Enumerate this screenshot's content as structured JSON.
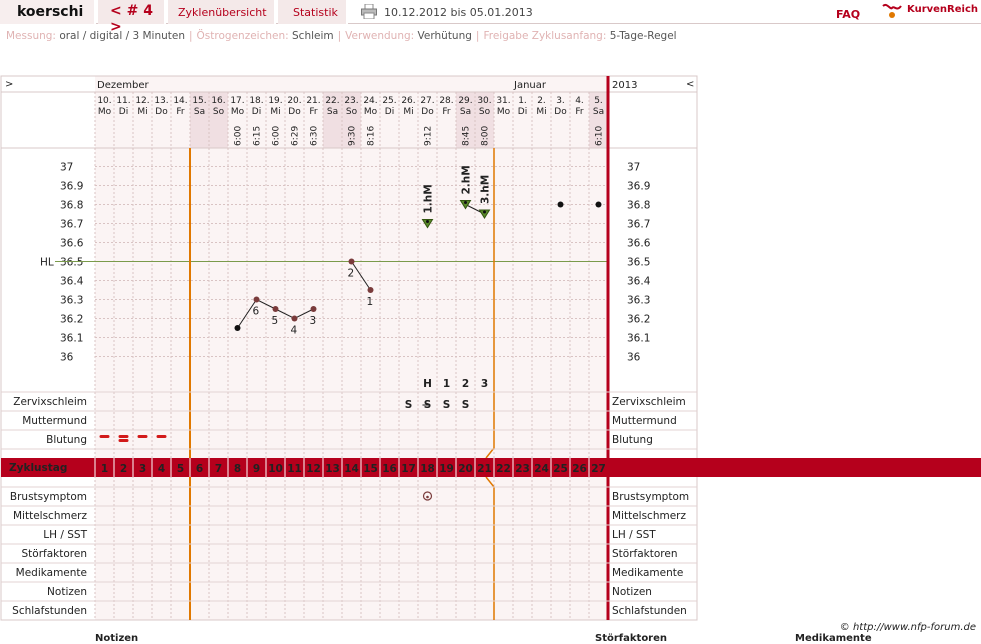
{
  "header": {
    "user": "koerschi",
    "cycle_nav": "< # 4 >",
    "cycle_overview": "Zyklenübersicht",
    "statistics": "Statistik",
    "date_range": "10.12.2012 bis 05.01.2013",
    "faq": "FAQ",
    "brand": "KurvenReich"
  },
  "settings": [
    {
      "label": "Messung:",
      "value": "oral / digital / 3 Minuten"
    },
    {
      "label": "Östrogenzeichen:",
      "value": "Schleim"
    },
    {
      "label": "Verwendung:",
      "value": "Verhütung"
    },
    {
      "label": "Freigabe Zyklusanfang:",
      "value": "5-Tage-Regel"
    }
  ],
  "chart": {
    "nav_prev": ">",
    "nav_next": "<",
    "month_1": "Dezember",
    "month_2": "Januar",
    "year": "2013",
    "hl_label": "HL",
    "days": [
      {
        "d": "10.",
        "w": "Mo",
        "we": false,
        "t": ""
      },
      {
        "d": "11.",
        "w": "Di",
        "we": false,
        "t": ""
      },
      {
        "d": "12.",
        "w": "Mi",
        "we": false,
        "t": ""
      },
      {
        "d": "13.",
        "w": "Do",
        "we": false,
        "t": ""
      },
      {
        "d": "14.",
        "w": "Fr",
        "we": false,
        "t": ""
      },
      {
        "d": "15.",
        "w": "Sa",
        "we": true,
        "t": ""
      },
      {
        "d": "16.",
        "w": "So",
        "we": true,
        "t": ""
      },
      {
        "d": "17.",
        "w": "Mo",
        "we": false,
        "t": "6:00"
      },
      {
        "d": "18.",
        "w": "Di",
        "we": false,
        "t": "6:15"
      },
      {
        "d": "19.",
        "w": "Mi",
        "we": false,
        "t": "6:00"
      },
      {
        "d": "20.",
        "w": "Do",
        "we": false,
        "t": "6:29"
      },
      {
        "d": "21.",
        "w": "Fr",
        "we": false,
        "t": "6:30"
      },
      {
        "d": "22.",
        "w": "Sa",
        "we": true,
        "t": ""
      },
      {
        "d": "23.",
        "w": "So",
        "we": true,
        "t": "9:30"
      },
      {
        "d": "24.",
        "w": "Mo",
        "we": false,
        "t": "8:16"
      },
      {
        "d": "25.",
        "w": "Di",
        "we": false,
        "t": ""
      },
      {
        "d": "26.",
        "w": "Mi",
        "we": false,
        "t": ""
      },
      {
        "d": "27.",
        "w": "Do",
        "we": false,
        "t": "9:12"
      },
      {
        "d": "28.",
        "w": "Fr",
        "we": false,
        "t": ""
      },
      {
        "d": "29.",
        "w": "Sa",
        "we": true,
        "t": "8:45"
      },
      {
        "d": "30.",
        "w": "So",
        "we": true,
        "t": "8:00"
      },
      {
        "d": "31.",
        "w": "Mo",
        "we": false,
        "t": ""
      },
      {
        "d": "1.",
        "w": "Di",
        "we": false,
        "t": ""
      },
      {
        "d": "2.",
        "w": "Mi",
        "we": false,
        "t": ""
      },
      {
        "d": "3.",
        "w": "Do",
        "we": false,
        "t": ""
      },
      {
        "d": "4.",
        "w": "Fr",
        "we": false,
        "t": ""
      },
      {
        "d": "5.",
        "w": "Sa",
        "we": true,
        "t": "6:10"
      }
    ],
    "temp_ticks": [
      "37",
      "36.9",
      "36.8",
      "36.7",
      "36.6",
      "36.5",
      "36.4",
      "36.3",
      "36.2",
      "36.1",
      "36"
    ],
    "hl_value": 36.5,
    "curve_1": [
      {
        "day": 8,
        "temp": 36.15,
        "label": "",
        "style": "black"
      },
      {
        "day": 9,
        "temp": 36.3,
        "label": "6",
        "style": "brown"
      },
      {
        "day": 10,
        "temp": 36.25,
        "label": "5",
        "style": "brown"
      },
      {
        "day": 11,
        "temp": 36.2,
        "label": "4",
        "style": "brown"
      },
      {
        "day": 12,
        "temp": 36.25,
        "label": "3",
        "style": "brown"
      }
    ],
    "curve_2": [
      {
        "day": 14,
        "temp": 36.5,
        "label": "2",
        "style": "brown"
      },
      {
        "day": 15,
        "temp": 36.35,
        "label": "1",
        "style": "brown"
      }
    ],
    "high_marks": [
      {
        "day": 18,
        "temp": 36.7,
        "label": "1.hM"
      },
      {
        "day": 20,
        "temp": 36.8,
        "label": "2.hM"
      },
      {
        "day": 21,
        "temp": 36.75,
        "label": "3.hM"
      }
    ],
    "late_points": [
      {
        "day": 25,
        "temp": 36.8
      },
      {
        "day": 27,
        "temp": 36.8
      }
    ],
    "mucus_counts": [
      {
        "day": 18,
        "text": "H"
      },
      {
        "day": 19,
        "text": "1"
      },
      {
        "day": 20,
        "text": "2"
      },
      {
        "day": 21,
        "text": "3"
      }
    ],
    "mucus": [
      {
        "day": 17,
        "text": "S"
      },
      {
        "day": 18,
        "text": "S̶"
      },
      {
        "day": 19,
        "text": "S"
      },
      {
        "day": 20,
        "text": "S"
      }
    ],
    "bleeding_days": [
      1,
      2,
      3,
      4
    ],
    "breast_day": 18,
    "cycle_days": [
      "1",
      "2",
      "3",
      "4",
      "5",
      "6",
      "7",
      "8",
      "9",
      "10",
      "11",
      "12",
      "13",
      "14",
      "15",
      "16",
      "17",
      "18",
      "19",
      "20",
      "21",
      "22",
      "23",
      "24",
      "25",
      "26",
      "27"
    ],
    "rows_top": [
      {
        "name": "Zervixschleim",
        "color": "#e07800"
      },
      {
        "name": "Muttermund",
        "color": "#3a5fc0"
      },
      {
        "name": "Blutung",
        "color": "#222222"
      }
    ],
    "cycle_row_label": "Zyklustag",
    "rows_bottom": [
      "Brustsymptom",
      "Mittelschmerz",
      "LH / SST",
      "Störfaktoren",
      "Medikamente",
      "Notizen",
      "Schlafstunden"
    ]
  },
  "footer": {
    "copyright": "© http://www.nfp-forum.de",
    "cut_1": "Notizen",
    "cut_2": "Störfaktoren",
    "cut_3": "Medikamente"
  },
  "colors": {
    "accent": "#b5001c",
    "orange": "#e07800",
    "grid_bg": "#fbf4f4",
    "weekend": "#f0dfe2",
    "curve": "#7a3b3b",
    "highmark": "#5a8a2a"
  }
}
